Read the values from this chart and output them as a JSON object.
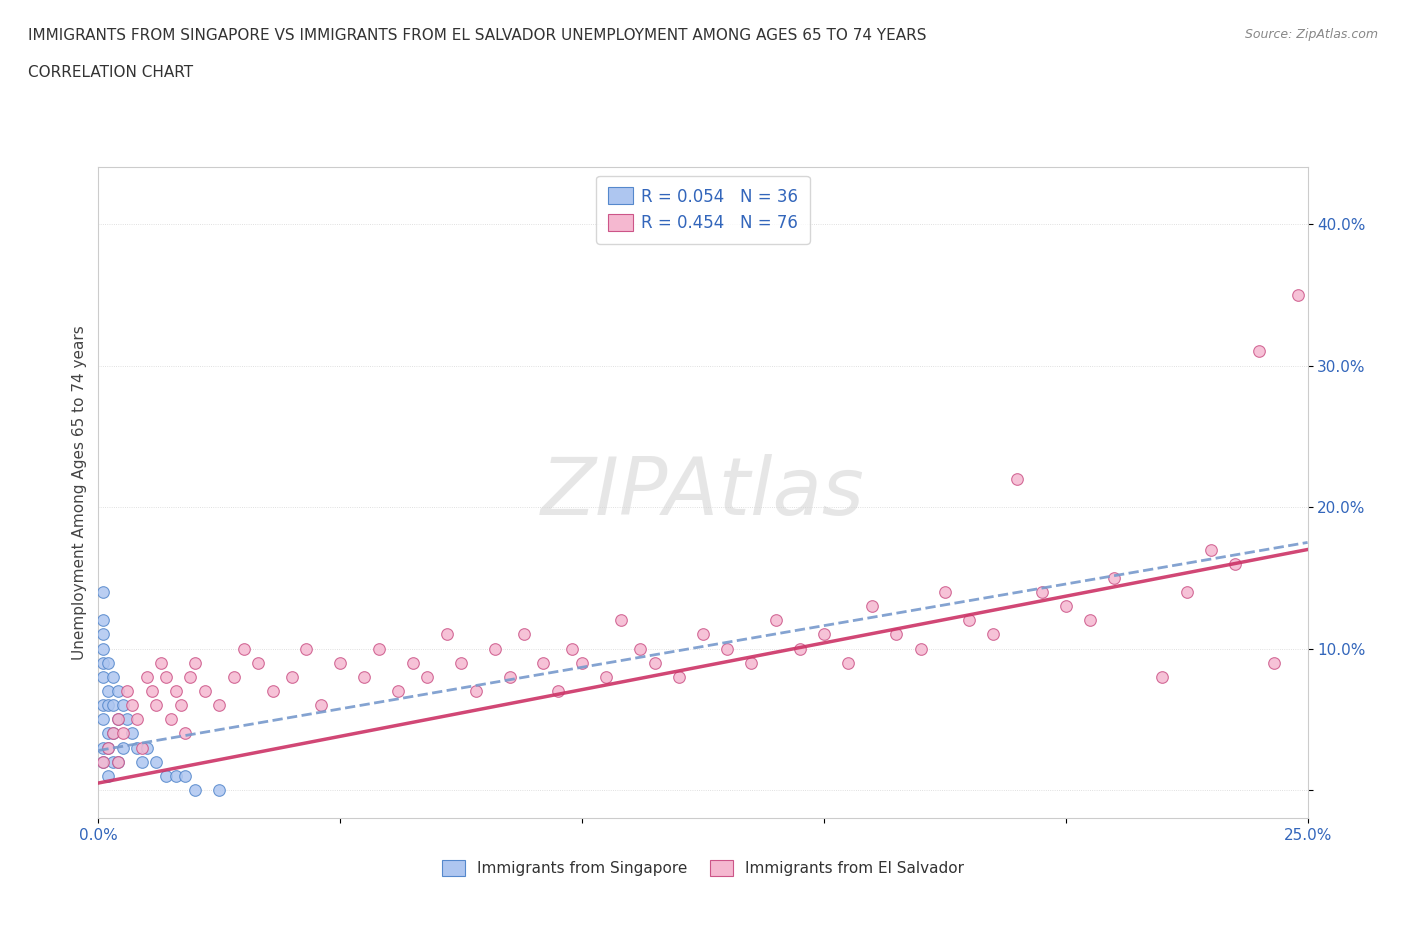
{
  "title_line1": "IMMIGRANTS FROM SINGAPORE VS IMMIGRANTS FROM EL SALVADOR UNEMPLOYMENT AMONG AGES 65 TO 74 YEARS",
  "title_line2": "CORRELATION CHART",
  "source_text": "Source: ZipAtlas.com",
  "ylabel": "Unemployment Among Ages 65 to 74 years",
  "xlim": [
    0.0,
    0.25
  ],
  "ylim": [
    -0.02,
    0.44
  ],
  "xticks": [
    0.0,
    0.05,
    0.1,
    0.15,
    0.2,
    0.25
  ],
  "yticks": [
    0.0,
    0.1,
    0.2,
    0.3,
    0.4
  ],
  "legend_R_singapore": "R = 0.054",
  "legend_N_singapore": "N = 36",
  "legend_R_salvador": "R = 0.454",
  "legend_N_salvador": "N = 76",
  "singapore_color": "#aec6f0",
  "salvador_color": "#f5b8d0",
  "singapore_edge": "#5588cc",
  "salvador_edge": "#cc5588",
  "trend_singapore_color": "#7799cc",
  "trend_salvador_color": "#cc3366",
  "watermark": "ZIPAtlas",
  "sg_x": [
    0.001,
    0.001,
    0.001,
    0.001,
    0.001,
    0.001,
    0.001,
    0.001,
    0.001,
    0.001,
    0.002,
    0.002,
    0.002,
    0.002,
    0.002,
    0.002,
    0.003,
    0.003,
    0.003,
    0.003,
    0.004,
    0.004,
    0.004,
    0.005,
    0.005,
    0.006,
    0.007,
    0.008,
    0.009,
    0.01,
    0.012,
    0.014,
    0.016,
    0.018,
    0.02,
    0.025
  ],
  "sg_y": [
    0.14,
    0.12,
    0.11,
    0.1,
    0.09,
    0.08,
    0.06,
    0.05,
    0.03,
    0.02,
    0.09,
    0.07,
    0.06,
    0.04,
    0.03,
    0.01,
    0.08,
    0.06,
    0.04,
    0.02,
    0.07,
    0.05,
    0.02,
    0.06,
    0.03,
    0.05,
    0.04,
    0.03,
    0.02,
    0.03,
    0.02,
    0.01,
    0.01,
    0.01,
    0.0,
    0.0
  ],
  "sv_x": [
    0.001,
    0.002,
    0.003,
    0.004,
    0.004,
    0.005,
    0.006,
    0.007,
    0.008,
    0.009,
    0.01,
    0.011,
    0.012,
    0.013,
    0.014,
    0.015,
    0.016,
    0.017,
    0.018,
    0.019,
    0.02,
    0.022,
    0.025,
    0.028,
    0.03,
    0.033,
    0.036,
    0.04,
    0.043,
    0.046,
    0.05,
    0.055,
    0.058,
    0.062,
    0.065,
    0.068,
    0.072,
    0.075,
    0.078,
    0.082,
    0.085,
    0.088,
    0.092,
    0.095,
    0.098,
    0.1,
    0.105,
    0.108,
    0.112,
    0.115,
    0.12,
    0.125,
    0.13,
    0.135,
    0.14,
    0.145,
    0.15,
    0.155,
    0.16,
    0.165,
    0.17,
    0.175,
    0.18,
    0.185,
    0.19,
    0.195,
    0.2,
    0.205,
    0.21,
    0.22,
    0.225,
    0.23,
    0.235,
    0.24,
    0.243,
    0.248
  ],
  "sv_y": [
    0.02,
    0.03,
    0.04,
    0.02,
    0.05,
    0.04,
    0.07,
    0.06,
    0.05,
    0.03,
    0.08,
    0.07,
    0.06,
    0.09,
    0.08,
    0.05,
    0.07,
    0.06,
    0.04,
    0.08,
    0.09,
    0.07,
    0.06,
    0.08,
    0.1,
    0.09,
    0.07,
    0.08,
    0.1,
    0.06,
    0.09,
    0.08,
    0.1,
    0.07,
    0.09,
    0.08,
    0.11,
    0.09,
    0.07,
    0.1,
    0.08,
    0.11,
    0.09,
    0.07,
    0.1,
    0.09,
    0.08,
    0.12,
    0.1,
    0.09,
    0.08,
    0.11,
    0.1,
    0.09,
    0.12,
    0.1,
    0.11,
    0.09,
    0.13,
    0.11,
    0.1,
    0.14,
    0.12,
    0.11,
    0.22,
    0.14,
    0.13,
    0.12,
    0.15,
    0.08,
    0.14,
    0.17,
    0.16,
    0.31,
    0.09,
    0.35
  ],
  "sg_trend_x0": 0.0,
  "sg_trend_x1": 0.25,
  "sg_trend_y0": 0.028,
  "sg_trend_y1": 0.175,
  "sv_trend_x0": 0.0,
  "sv_trend_x1": 0.25,
  "sv_trend_y0": 0.005,
  "sv_trend_y1": 0.17
}
